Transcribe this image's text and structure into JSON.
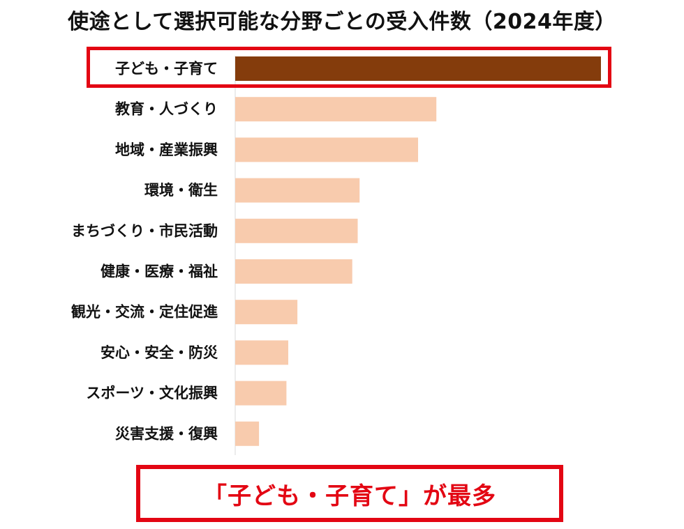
{
  "title": "使途として選択可能な分野ごとの受入件数（2024年度）",
  "callout": "「子ども・子育て」が最多",
  "colors": {
    "highlight_bar": "#843c0c",
    "bar": "#f8cbad",
    "emphasis": "#e30613"
  },
  "chart_data": {
    "type": "bar",
    "orientation": "horizontal",
    "title": "使途として選択可能な分野ごとの受入件数（2024年度）",
    "categories": [
      "子ども・子育て",
      "教育・人づくり",
      "地域・産業振興",
      "環境・衛生",
      "まちづくり・市民活動",
      "健康・医療・福祉",
      "観光・交流・定住促進",
      "安心・安全・防災",
      "スポーツ・文化振興",
      "災害支援・復興"
    ],
    "values": [
      100,
      55,
      50,
      34,
      33.5,
      32,
      17,
      14.5,
      14,
      6.5
    ],
    "value_unit": "relative length (no axis or data labels shown)",
    "highlighted_category": "子ども・子育て",
    "xlim": [
      0,
      100
    ],
    "grid": false,
    "legend": false
  }
}
